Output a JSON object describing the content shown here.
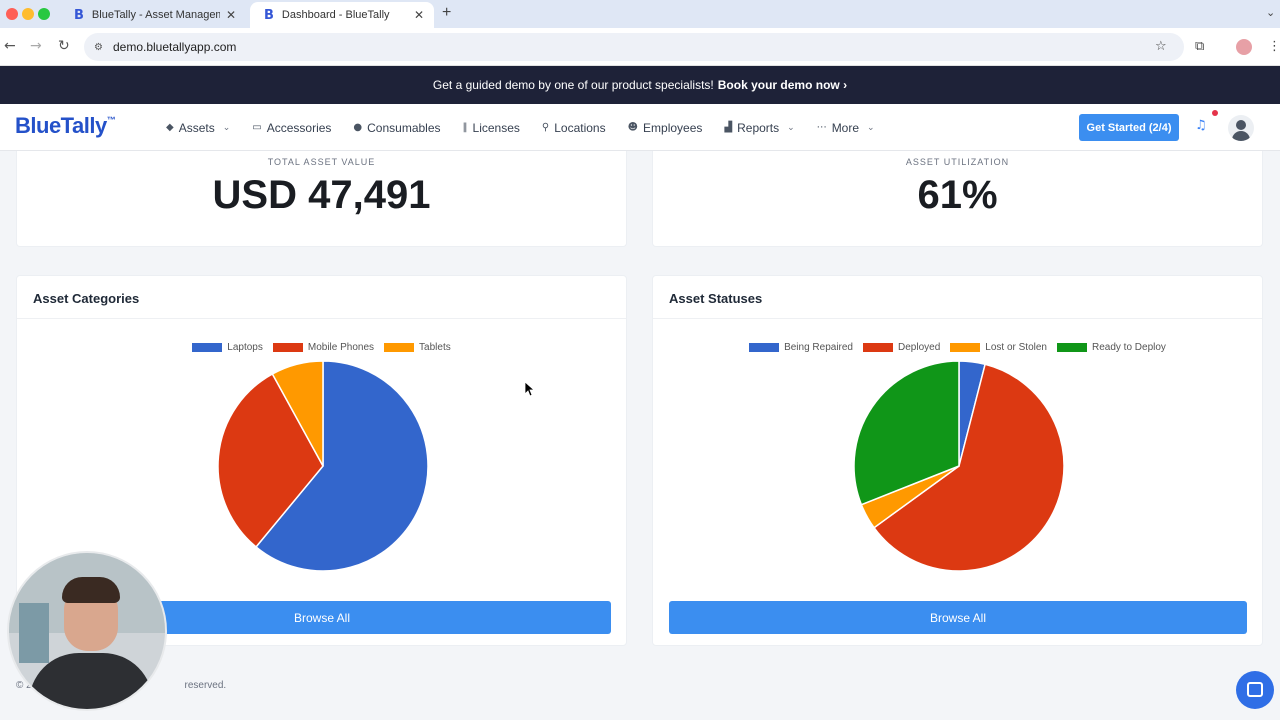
{
  "browser": {
    "tabs": [
      {
        "title": "BlueTally - Asset Managemen",
        "active": false
      },
      {
        "title": "Dashboard - BlueTally",
        "active": true
      }
    ],
    "url": "demo.bluetallyapp.com"
  },
  "promo": {
    "text": "Get a guided demo by one of our product specialists!",
    "link": "Book your demo now ›"
  },
  "header": {
    "logo": "BlueTally",
    "logo_tm": "™",
    "nav": [
      {
        "label": "Assets",
        "icon": "tag-icon",
        "dropdown": true
      },
      {
        "label": "Accessories",
        "icon": "keyboard-icon",
        "dropdown": false
      },
      {
        "label": "Consumables",
        "icon": "drop-icon",
        "dropdown": false
      },
      {
        "label": "Licenses",
        "icon": "barcode-icon",
        "dropdown": false
      },
      {
        "label": "Locations",
        "icon": "pin-icon",
        "dropdown": false
      },
      {
        "label": "Employees",
        "icon": "users-icon",
        "dropdown": false
      },
      {
        "label": "Reports",
        "icon": "chart-icon",
        "dropdown": true
      },
      {
        "label": "More",
        "icon": "dots-icon",
        "dropdown": true
      }
    ],
    "get_started": "Get Started (2/4)"
  },
  "kpis": {
    "total_label": "TOTAL ASSET VALUE",
    "total_value": "USD 47,491",
    "util_label": "ASSET UTILIZATION",
    "util_value": "61%"
  },
  "categories": {
    "title": "Asset Categories",
    "browse": "Browse All",
    "legend": [
      {
        "name": "Laptops",
        "color": "#3366cc"
      },
      {
        "name": "Mobile Phones",
        "color": "#dc3912"
      },
      {
        "name": "Tablets",
        "color": "#ff9900"
      }
    ],
    "fractions": [
      0.61,
      0.31,
      0.08
    ]
  },
  "statuses": {
    "title": "Asset Statuses",
    "browse": "Browse All",
    "legend": [
      {
        "name": "Being Repaired",
        "color": "#3366cc"
      },
      {
        "name": "Deployed",
        "color": "#dc3912"
      },
      {
        "name": "Lost or Stolen",
        "color": "#ff9900"
      },
      {
        "name": "Ready to Deploy",
        "color": "#109618"
      }
    ],
    "fractions": [
      0.04,
      0.61,
      0.04,
      0.31
    ]
  },
  "footer": {
    "text": "© 2",
    "text_end": "reserved."
  }
}
